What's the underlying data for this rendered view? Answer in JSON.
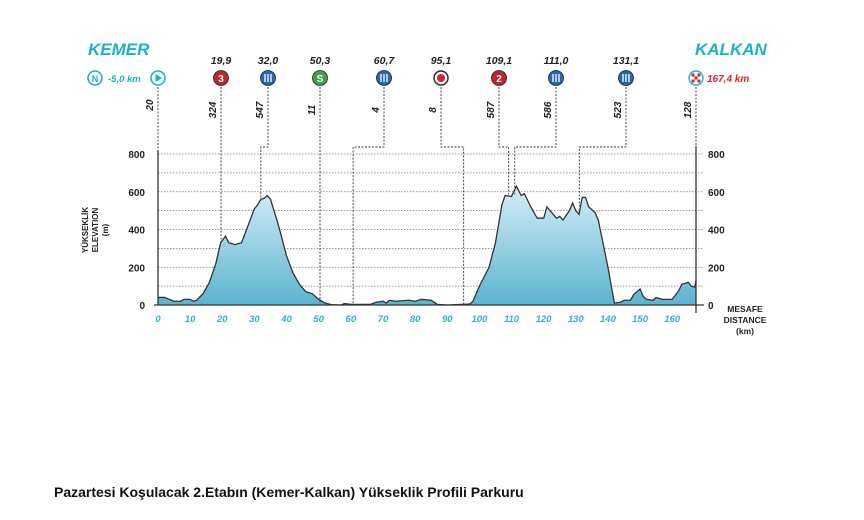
{
  "chart_data": {
    "type": "area",
    "title": "",
    "start_town": "KEMER",
    "finish_town": "KALKAN",
    "neutral": {
      "icon": "neutral-icon",
      "letter": "N",
      "label": "-5,0 km"
    },
    "finish_label": "167,4 km",
    "ylabel_lines": [
      "YÜKSEKLİK",
      "ELEVATION",
      "(m)"
    ],
    "xlabel_lines": [
      "MESAFE",
      "DISTANCE",
      "(km)"
    ],
    "xlim": [
      0,
      167.4
    ],
    "ylim": [
      0,
      800
    ],
    "xticks": [
      0,
      10,
      20,
      30,
      40,
      50,
      60,
      70,
      80,
      90,
      100,
      110,
      120,
      130,
      140,
      150,
      160
    ],
    "yticks": [
      0,
      200,
      400,
      600,
      800
    ],
    "grid": true,
    "colors": {
      "title": "#19b3c8",
      "fill_top": "#d6eef6",
      "fill_bottom": "#5ab4d0",
      "line": "#333333",
      "climb": "#c0272d",
      "feed": "#2a66b0",
      "sprint": "#3aa447",
      "finish": "#d6232f"
    },
    "markers": [
      {
        "km": 0,
        "km_label": "",
        "elev": "20",
        "type": "start"
      },
      {
        "km": 19.9,
        "km_label": "19,9",
        "elev": "324",
        "type": "climb",
        "text": "3"
      },
      {
        "km": 32.0,
        "km_label": "32,0",
        "elev": "547",
        "type": "feed"
      },
      {
        "km": 50.3,
        "km_label": "50,3",
        "elev": "11",
        "type": "sprint",
        "text": "S"
      },
      {
        "km": 60.7,
        "km_label": "60,7",
        "elev": "4",
        "type": "feed"
      },
      {
        "km": 95.1,
        "km_label": "95,1",
        "elev": "8",
        "type": "bonus"
      },
      {
        "km": 109.1,
        "km_label": "109,1",
        "elev": "587",
        "type": "climb",
        "text": "2"
      },
      {
        "km": 111.0,
        "km_label": "111,0",
        "elev": "586",
        "type": "feed"
      },
      {
        "km": 131.1,
        "km_label": "131,1",
        "elev": "523",
        "type": "feed"
      },
      {
        "km": 167.4,
        "km_label": "",
        "elev": "128",
        "type": "finish"
      }
    ],
    "profile": [
      [
        0,
        40
      ],
      [
        2,
        40
      ],
      [
        5,
        20
      ],
      [
        7,
        20
      ],
      [
        8,
        30
      ],
      [
        10,
        30
      ],
      [
        11,
        20
      ],
      [
        12,
        25
      ],
      [
        14,
        60
      ],
      [
        16,
        120
      ],
      [
        18,
        220
      ],
      [
        19.5,
        330
      ],
      [
        21,
        365
      ],
      [
        22,
        330
      ],
      [
        24,
        320
      ],
      [
        26,
        330
      ],
      [
        28,
        420
      ],
      [
        30,
        510
      ],
      [
        31,
        530
      ],
      [
        32,
        560
      ],
      [
        33,
        565
      ],
      [
        34,
        580
      ],
      [
        35,
        560
      ],
      [
        37,
        450
      ],
      [
        38,
        390
      ],
      [
        40,
        260
      ],
      [
        42,
        170
      ],
      [
        44,
        110
      ],
      [
        46,
        70
      ],
      [
        48,
        60
      ],
      [
        50,
        30
      ],
      [
        52,
        10
      ],
      [
        54,
        2
      ],
      [
        57,
        0
      ],
      [
        58,
        8
      ],
      [
        60,
        3
      ],
      [
        66,
        3
      ],
      [
        68,
        15
      ],
      [
        70,
        20
      ],
      [
        71,
        10
      ],
      [
        72,
        25
      ],
      [
        74,
        20
      ],
      [
        78,
        25
      ],
      [
        80,
        20
      ],
      [
        82,
        30
      ],
      [
        85,
        25
      ],
      [
        87,
        3
      ],
      [
        90,
        0
      ],
      [
        97,
        5
      ],
      [
        98,
        20
      ],
      [
        100,
        100
      ],
      [
        103,
        200
      ],
      [
        105,
        330
      ],
      [
        107,
        530
      ],
      [
        108,
        580
      ],
      [
        110,
        575
      ],
      [
        111.5,
        630
      ],
      [
        113,
        580
      ],
      [
        114,
        590
      ],
      [
        116,
        520
      ],
      [
        118,
        460
      ],
      [
        120,
        460
      ],
      [
        121,
        520
      ],
      [
        123,
        480
      ],
      [
        124,
        460
      ],
      [
        125,
        470
      ],
      [
        126,
        450
      ],
      [
        128,
        500
      ],
      [
        129,
        540
      ],
      [
        130,
        500
      ],
      [
        131,
        480
      ],
      [
        132,
        570
      ],
      [
        133,
        570
      ],
      [
        134,
        520
      ],
      [
        136,
        490
      ],
      [
        137,
        450
      ],
      [
        140,
        200
      ],
      [
        142,
        10
      ],
      [
        144,
        15
      ],
      [
        145,
        25
      ],
      [
        147,
        25
      ],
      [
        148,
        55
      ],
      [
        150,
        85
      ],
      [
        151,
        45
      ],
      [
        152,
        30
      ],
      [
        154,
        25
      ],
      [
        155,
        40
      ],
      [
        157,
        30
      ],
      [
        160,
        30
      ],
      [
        162,
        75
      ],
      [
        163,
        110
      ],
      [
        165,
        120
      ],
      [
        166,
        100
      ],
      [
        167,
        95
      ],
      [
        167.4,
        130
      ]
    ]
  },
  "caption": "Pazartesi Koşulacak 2.Etabın (Kemer-Kalkan) Yükseklik Profili Parkuru"
}
